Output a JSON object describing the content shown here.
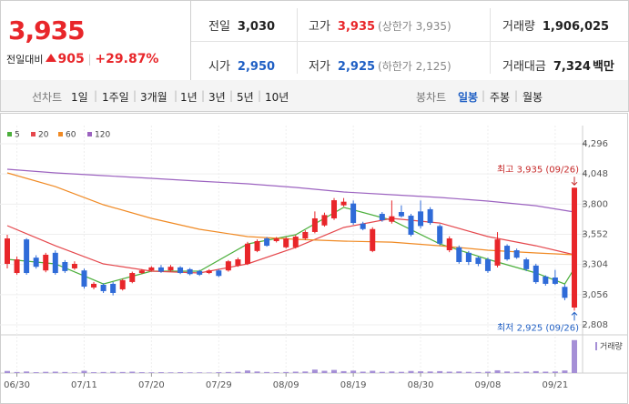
{
  "header": {
    "price": "3,935",
    "change_label": "전일대비",
    "change": "905",
    "change_rate": "+29.87%",
    "stats": [
      {
        "label": "전일",
        "value": "3,030"
      },
      {
        "label": "고가",
        "value": "3,935",
        "note": "(상한가 3,935)"
      },
      {
        "label": "거래량",
        "value": "1,906,025"
      },
      {
        "label": "시가",
        "value": "2,950"
      },
      {
        "label": "저가",
        "value": "2,925",
        "note": "(하한가 2,125)"
      },
      {
        "label": "거래대금",
        "value": "7,324",
        "unit": "백만"
      }
    ]
  },
  "toolbar": {
    "line_chart": "선차트",
    "periods": [
      "1일",
      "1주일",
      "3개월",
      "1년",
      "3년",
      "5년",
      "10년"
    ],
    "candle_chart": "봉차트",
    "intervals": [
      "일봉",
      "주봉",
      "월봉"
    ]
  },
  "chart_data": {
    "type": "candlestick",
    "categories": [
      null,
      "06/30",
      null,
      null,
      null,
      null,
      null,
      null,
      "07/11",
      null,
      null,
      null,
      null,
      null,
      null,
      "07/20",
      null,
      null,
      null,
      null,
      null,
      null,
      "07/29",
      null,
      null,
      null,
      null,
      null,
      null,
      "08/09",
      null,
      null,
      null,
      null,
      null,
      null,
      "08/19",
      null,
      null,
      null,
      null,
      null,
      null,
      "08/30",
      null,
      null,
      null,
      null,
      null,
      null,
      "09/08",
      null,
      null,
      null,
      null,
      null,
      null,
      "09/21",
      null,
      null
    ],
    "open": [
      3309,
      3234,
      3510,
      3360,
      3255,
      3400,
      3324,
      3272,
      3255,
      3115,
      3137,
      3145,
      3100,
      3160,
      3234,
      3255,
      3280,
      3255,
      3280,
      3265,
      3250,
      3234,
      3255,
      3255,
      3295,
      3309,
      3415,
      3518,
      3496,
      3445,
      3445,
      3518,
      3571,
      3625,
      3683,
      3790,
      3805,
      3640,
      3415,
      3720,
      3655,
      3735,
      3705,
      3740,
      3758,
      3620,
      3421,
      3445,
      3400,
      3360,
      3346,
      3295,
      3458,
      3421,
      3346,
      3295,
      3205,
      3197,
      3120,
      2950
    ],
    "high": [
      3548,
      3370,
      3520,
      3380,
      3400,
      3420,
      3340,
      3330,
      3270,
      3160,
      3150,
      3160,
      3185,
      3245,
      3265,
      3290,
      3300,
      3300,
      3290,
      3275,
      3260,
      3265,
      3265,
      3340,
      3360,
      3490,
      3510,
      3530,
      3530,
      3530,
      3545,
      3585,
      3740,
      3730,
      3850,
      3850,
      3830,
      3655,
      3610,
      3735,
      3830,
      3790,
      3720,
      3830,
      3775,
      3635,
      3535,
      3460,
      3415,
      3370,
      3360,
      3570,
      3470,
      3435,
      3360,
      3310,
      3215,
      3260,
      3140,
      3935
    ],
    "low": [
      3272,
      3220,
      3220,
      3270,
      3240,
      3220,
      3235,
      3260,
      3105,
      3100,
      3070,
      3050,
      3090,
      3150,
      3225,
      3245,
      3235,
      3245,
      3225,
      3215,
      3210,
      3225,
      3200,
      3245,
      3285,
      3300,
      3405,
      3450,
      3485,
      3435,
      3435,
      3505,
      3560,
      3615,
      3670,
      3780,
      3630,
      3585,
      3405,
      3655,
      3640,
      3690,
      3535,
      3600,
      3630,
      3460,
      3405,
      3310,
      3300,
      3290,
      3235,
      3280,
      3335,
      3350,
      3250,
      3145,
      3130,
      3135,
      3010,
      2925
    ],
    "close": [
      3518,
      3346,
      3234,
      3285,
      3384,
      3234,
      3250,
      3309,
      3122,
      3145,
      3085,
      3070,
      3175,
      3234,
      3255,
      3280,
      3245,
      3285,
      3234,
      3225,
      3220,
      3255,
      3210,
      3330,
      3346,
      3475,
      3496,
      3458,
      3518,
      3518,
      3533,
      3571,
      3683,
      3710,
      3832,
      3820,
      3645,
      3595,
      3595,
      3668,
      3700,
      3700,
      3548,
      3620,
      3645,
      3475,
      3518,
      3324,
      3324,
      3309,
      3250,
      3510,
      3346,
      3360,
      3265,
      3159,
      3145,
      3145,
      3030,
      3935
    ],
    "up_color": "#e8262a",
    "down_color": "#2f6bd8",
    "series": [
      {
        "name": "5",
        "color": "#4caf3c",
        "x": [
          0,
          5,
          10,
          15,
          20,
          25,
          30,
          35,
          40,
          45,
          50,
          55,
          58,
          59
        ],
        "values": [
          3346,
          3309,
          3144,
          3249,
          3249,
          3473,
          3548,
          3773,
          3668,
          3473,
          3346,
          3234,
          3144,
          3272
        ]
      },
      {
        "name": "20",
        "color": "#e5484d",
        "x": [
          0,
          5,
          10,
          15,
          20,
          25,
          30,
          35,
          40,
          45,
          50,
          55,
          59
        ],
        "values": [
          3623,
          3458,
          3309,
          3249,
          3234,
          3309,
          3444,
          3608,
          3683,
          3645,
          3533,
          3458,
          3384
        ]
      },
      {
        "name": "60",
        "color": "#f08a24",
        "x": [
          0,
          5,
          10,
          15,
          20,
          25,
          30,
          35,
          40,
          45,
          50,
          55,
          59
        ],
        "values": [
          4057,
          3944,
          3795,
          3683,
          3593,
          3533,
          3511,
          3496,
          3488,
          3458,
          3421,
          3399,
          3384
        ]
      },
      {
        "name": "120",
        "color": "#9c63c0",
        "x": [
          0,
          5,
          10,
          15,
          20,
          25,
          30,
          35,
          40,
          45,
          50,
          55,
          59
        ],
        "values": [
          4087,
          4057,
          4034,
          4012,
          3989,
          3967,
          3937,
          3900,
          3877,
          3855,
          3825,
          3787,
          3735
        ]
      }
    ],
    "volume": {
      "name": "거래량",
      "color": "#a58fd6",
      "values": [
        120000,
        60000,
        90000,
        50000,
        70000,
        80000,
        60000,
        40000,
        130000,
        50000,
        60000,
        70000,
        60000,
        80000,
        50000,
        40000,
        50000,
        40000,
        50000,
        40000,
        40000,
        30000,
        50000,
        60000,
        70000,
        150000,
        90000,
        60000,
        50000,
        60000,
        80000,
        90000,
        200000,
        130000,
        180000,
        110000,
        140000,
        80000,
        130000,
        70000,
        90000,
        70000,
        120000,
        100000,
        90000,
        110000,
        80000,
        90000,
        70000,
        60000,
        80000,
        160000,
        90000,
        70000,
        80000,
        110000,
        80000,
        90000,
        150000,
        1906025
      ]
    },
    "volume_ylim": [
      0,
      2000000
    ],
    "ylim": [
      2808,
      4296
    ],
    "yticks": [
      {
        "value": 2808,
        "label": "2,808"
      },
      {
        "value": 3056,
        "label": "3,056"
      },
      {
        "value": 3304,
        "label": "3,304"
      },
      {
        "value": 3552,
        "label": "3,552"
      },
      {
        "value": 3800,
        "label": "3,800"
      },
      {
        "value": 4048,
        "label": "4,048"
      },
      {
        "value": 4296,
        "label": "4,296"
      }
    ],
    "grid": true,
    "annotations": [
      {
        "text": "최고 3,935 (09/26)",
        "color": "#c62828"
      },
      {
        "text": "최저 2,925 (09/26)",
        "color": "#1f5fc4"
      }
    ]
  }
}
